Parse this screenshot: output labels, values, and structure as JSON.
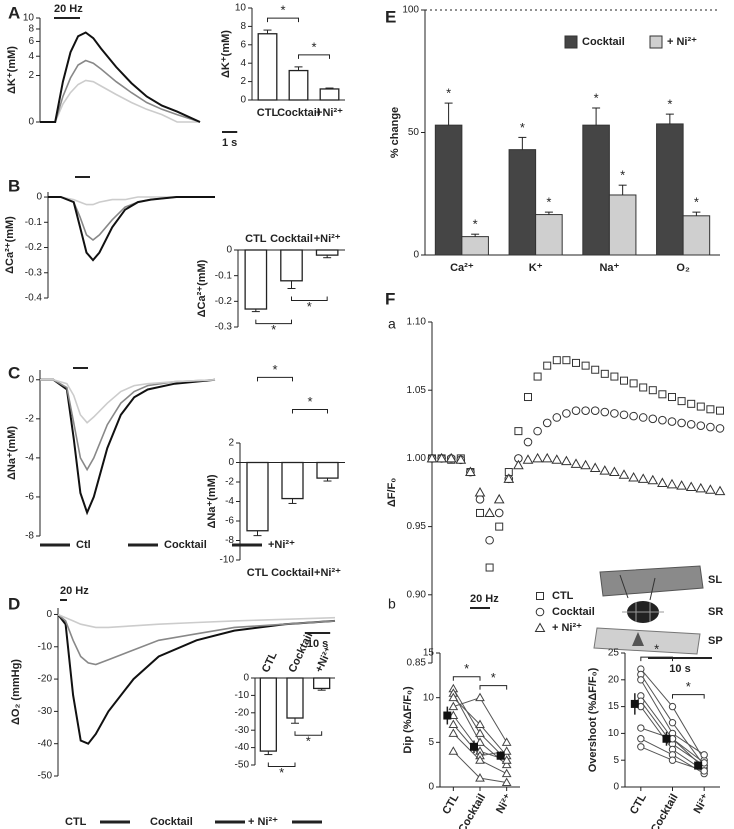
{
  "chart_data": [
    {
      "type": "line",
      "panel": "A",
      "ylabel": "ΔK⁺(mM)",
      "yscale": "sqrt",
      "ylim": [
        0,
        10
      ],
      "yticks": [
        0,
        2,
        4,
        6,
        8,
        10
      ],
      "xlim": [
        0,
        10.5
      ],
      "stim_label": "20 Hz",
      "scale_bar": {
        "value": 1,
        "label": "1 s"
      },
      "x": [
        0,
        1,
        1.5,
        2,
        2.5,
        3,
        3.5,
        4,
        5,
        6,
        7,
        8,
        9,
        10.5
      ],
      "series": [
        {
          "color": "#cccccc",
          "values": [
            0,
            0,
            0.3,
            0.8,
            1.3,
            1.6,
            1.5,
            1.2,
            0.7,
            0.35,
            0.15,
            0.05,
            0,
            0
          ]
        },
        {
          "color": "#888888",
          "values": [
            0,
            0,
            0.6,
            1.8,
            3,
            3.5,
            3.2,
            2.6,
            1.5,
            0.8,
            0.35,
            0.15,
            0.05,
            0
          ]
        },
        {
          "color": "#111111",
          "values": [
            0,
            0,
            1.5,
            4.5,
            6.8,
            7.4,
            6.5,
            5,
            2.8,
            1.4,
            0.6,
            0.25,
            0.1,
            0
          ]
        }
      ]
    },
    {
      "type": "bar",
      "ylabel": "ΔK⁺(mM)",
      "categories": [
        "CTL",
        "Cocktail",
        "+Ni²⁺"
      ],
      "values": [
        7.2,
        3.2,
        1.2
      ],
      "errors": [
        0.4,
        0.4,
        0.1
      ],
      "color": "#ffffff",
      "ylim": [
        0,
        10
      ],
      "yticks": [
        0,
        2,
        4,
        6,
        8,
        10
      ],
      "brackets": [
        {
          "between": [
            0,
            1
          ],
          "label": "*"
        },
        {
          "between": [
            1,
            2
          ],
          "label": "*"
        }
      ]
    },
    {
      "type": "line",
      "panel": "B",
      "ylabel": "ΔCa²⁺(mM)",
      "ylim": [
        -0.4,
        0.02
      ],
      "yticks": [
        0,
        -0.1,
        -0.2,
        -0.3,
        -0.4
      ],
      "xlim": [
        0,
        13
      ],
      "x": [
        0,
        1,
        2,
        2.5,
        3,
        3.5,
        4,
        5,
        6,
        7,
        8,
        10,
        13
      ],
      "series": [
        {
          "color": "#cccccc",
          "values": [
            0,
            0,
            -0.01,
            -0.02,
            -0.03,
            -0.03,
            -0.02,
            -0.01,
            -0.01,
            0,
            0,
            0,
            0
          ]
        },
        {
          "color": "#888888",
          "values": [
            0,
            0,
            -0.02,
            -0.08,
            -0.15,
            -0.17,
            -0.15,
            -0.09,
            -0.04,
            -0.02,
            -0.01,
            0,
            0
          ]
        },
        {
          "color": "#111111",
          "values": [
            0,
            0,
            -0.02,
            -0.12,
            -0.22,
            -0.25,
            -0.22,
            -0.12,
            -0.05,
            -0.02,
            -0.01,
            0,
            0
          ]
        }
      ]
    },
    {
      "type": "bar",
      "ylabel": "ΔCa²⁺(mM)",
      "categories": [
        "CTL",
        "Cocktail",
        "+Ni²⁺"
      ],
      "values": [
        -0.23,
        -0.12,
        -0.02
      ],
      "errors": [
        0.01,
        0.03,
        0.01
      ],
      "color": "#ffffff",
      "ylim": [
        -0.3,
        0
      ],
      "yticks": [
        0,
        -0.1,
        -0.2,
        -0.3
      ],
      "brackets": [
        {
          "between": [
            0,
            1
          ],
          "label": "*"
        },
        {
          "between": [
            1,
            2
          ],
          "label": "*"
        }
      ]
    },
    {
      "type": "line",
      "panel": "C",
      "ylabel": "ΔNa⁺(mM)",
      "ylim": [
        -8,
        0.5
      ],
      "yticks": [
        0,
        -2,
        -4,
        -6,
        -8
      ],
      "xlim": [
        0,
        13
      ],
      "x": [
        0,
        1,
        2,
        2.5,
        3,
        3.5,
        4,
        5,
        6,
        7,
        8,
        10,
        13
      ],
      "series": [
        {
          "name": "Ctl",
          "color": "#111111",
          "values": [
            0,
            0,
            -0.5,
            -3,
            -5.8,
            -6.8,
            -6,
            -3.5,
            -1.8,
            -0.9,
            -0.5,
            -0.2,
            0
          ]
        },
        {
          "name": "Cocktail",
          "color": "#888888",
          "values": [
            0,
            0,
            -0.4,
            -2.2,
            -4,
            -4.6,
            -4,
            -2.3,
            -1.2,
            -0.6,
            -0.3,
            -0.1,
            0
          ]
        },
        {
          "name": "+Ni²⁺",
          "color": "#cccccc",
          "values": [
            0,
            0,
            -0.2,
            -0.8,
            -1.8,
            -2.2,
            -1.9,
            -1.2,
            -0.6,
            -0.3,
            -0.2,
            -0.1,
            0
          ]
        }
      ]
    },
    {
      "type": "bar",
      "ylabel": "ΔNa⁺(mM)",
      "categories": [
        "CTL",
        "Cocktail",
        "+Ni²⁺"
      ],
      "values": [
        -7,
        -3.7,
        -1.6
      ],
      "errors": [
        0.5,
        0.5,
        0.3
      ],
      "color": "#ffffff",
      "ylim": [
        -10,
        2
      ],
      "yticks": [
        2,
        0,
        -2,
        -4,
        -6,
        -8,
        -10
      ],
      "brackets": [
        {
          "between": [
            0,
            1
          ],
          "label": "*"
        },
        {
          "between": [
            1,
            2
          ],
          "label": "*"
        }
      ]
    },
    {
      "type": "line",
      "panel": "D",
      "ylabel": "ΔO₂ (mmHg)",
      "ylim": [
        -50,
        2
      ],
      "yticks": [
        0,
        -10,
        -20,
        -30,
        -40,
        -50
      ],
      "xlim": [
        0,
        110
      ],
      "stim_label": "20 Hz",
      "scale_bar": {
        "value": 10,
        "label": "10 s"
      },
      "x": [
        0,
        3,
        6,
        9,
        12,
        15,
        20,
        30,
        40,
        55,
        70,
        90,
        110
      ],
      "series": [
        {
          "name": "CTL",
          "color": "#111111",
          "values": [
            0,
            -3,
            -25,
            -39,
            -40,
            -37,
            -30,
            -20,
            -13,
            -8,
            -5,
            -3,
            -2
          ]
        },
        {
          "name": "Cocktail",
          "color": "#888888",
          "values": [
            0,
            -2,
            -8,
            -13,
            -15,
            -15.5,
            -14,
            -11,
            -8,
            -6,
            -4,
            -3,
            -2
          ]
        },
        {
          "name": "+ Ni²⁺",
          "color": "#cccccc",
          "values": [
            0,
            -1,
            -2,
            -3,
            -3.5,
            -4,
            -4,
            -3.5,
            -3,
            -2.5,
            -2,
            -1.5,
            -1
          ]
        }
      ]
    },
    {
      "type": "bar",
      "categories": [
        "CTL",
        "Cocktail",
        "+Ni²⁺"
      ],
      "values": [
        -42,
        -23,
        -6
      ],
      "errors": [
        2,
        3,
        1
      ],
      "color": "#ffffff",
      "ylim": [
        -50,
        0
      ],
      "yticks": [
        0,
        -10,
        -20,
        -30,
        -40,
        -50
      ],
      "brackets": [
        {
          "between": [
            0,
            1
          ],
          "label": "*"
        },
        {
          "between": [
            1,
            2
          ],
          "label": "*"
        }
      ]
    },
    {
      "type": "grouped_bar",
      "panel": "E",
      "ylabel": "% change",
      "categories": [
        "Ca²⁺",
        "K⁺",
        "Na⁺",
        "O₂"
      ],
      "ylim": [
        0,
        100
      ],
      "yticks": [
        0,
        50,
        100
      ],
      "annotation": "*",
      "series": [
        {
          "name": "Cocktail",
          "color": "#454545",
          "values": [
            53,
            43,
            53,
            53.5
          ],
          "errors": [
            9,
            5,
            7,
            4
          ]
        },
        {
          "name": "+ Ni²⁺",
          "color": "#cfcfcf",
          "values": [
            7.5,
            16.5,
            24.5,
            16
          ],
          "errors": [
            1,
            1,
            4,
            1.5
          ]
        }
      ]
    },
    {
      "type": "scatter",
      "panel": "F",
      "subpanel": "a",
      "ylabel": "ΔF/F₀",
      "xlim": [
        0,
        45
      ],
      "ylim": [
        0.85,
        1.1
      ],
      "yticks": [
        {
          "value": 1.1,
          "label": "1.10"
        },
        1.05,
        {
          "value": 1,
          "label": "1.00"
        },
        0.95,
        {
          "value": 0.9,
          "label": "0.90"
        },
        0.85
      ],
      "stim_label": "20 Hz",
      "scale_bar": {
        "value": 10,
        "label": "10 s"
      },
      "diagram_labels": [
        "SL",
        "SR",
        "SP"
      ],
      "x": [
        0,
        1.5,
        3,
        4.5,
        6,
        7.5,
        9,
        10.5,
        12,
        13.5,
        15,
        16.5,
        18,
        19.5,
        21,
        22.5,
        24,
        25.5,
        27,
        28.5,
        30,
        31.5,
        33,
        34.5,
        36,
        37.5,
        39,
        40.5,
        42,
        43.5,
        45
      ],
      "series": [
        {
          "name": "CTL",
          "marker": "square",
          "values": [
            1,
            1,
            0.999,
            1,
            0.99,
            0.96,
            0.92,
            0.95,
            0.99,
            1.02,
            1.045,
            1.06,
            1.068,
            1.072,
            1.072,
            1.07,
            1.068,
            1.065,
            1.062,
            1.06,
            1.057,
            1.055,
            1.052,
            1.05,
            1.047,
            1.045,
            1.042,
            1.04,
            1.038,
            1.036,
            1.035
          ]
        },
        {
          "name": "Cocktail",
          "marker": "circle",
          "values": [
            1,
            1,
            1,
            0.999,
            0.99,
            0.97,
            0.94,
            0.96,
            0.985,
            1,
            1.012,
            1.02,
            1.026,
            1.03,
            1.033,
            1.035,
            1.035,
            1.035,
            1.034,
            1.033,
            1.032,
            1.031,
            1.03,
            1.029,
            1.028,
            1.027,
            1.026,
            1.025,
            1.024,
            1.023,
            1.022
          ]
        },
        {
          "name": "+ Ni²⁺",
          "marker": "triangle",
          "values": [
            1,
            1,
            1,
            0.999,
            0.99,
            0.975,
            0.96,
            0.97,
            0.985,
            0.995,
            0.999,
            1,
            1,
            0.999,
            0.998,
            0.996,
            0.995,
            0.993,
            0.991,
            0.99,
            0.988,
            0.986,
            0.985,
            0.984,
            0.982,
            0.981,
            0.98,
            0.979,
            0.978,
            0.977,
            0.976
          ]
        }
      ]
    },
    {
      "type": "paired",
      "subpanel": "b",
      "ylabel": "Dip (%ΔF/F₀)",
      "categories": [
        "CTL",
        "Cocktail",
        "Ni²⁺"
      ],
      "ylim": [
        0,
        15
      ],
      "yticks": [
        0,
        5,
        10,
        15
      ],
      "marker": "triangle",
      "series": [
        {
          "values": [
            11,
            6,
            3
          ]
        },
        {
          "values": [
            10.5,
            5,
            2.5
          ]
        },
        {
          "values": [
            10,
            7,
            3.5
          ]
        },
        {
          "values": [
            9,
            10,
            5
          ]
        },
        {
          "values": [
            8,
            4,
            3
          ]
        },
        {
          "values": [
            7,
            3.5,
            4
          ]
        },
        {
          "values": [
            6,
            3,
            1.5
          ]
        },
        {
          "values": [
            4,
            1,
            0.5
          ]
        }
      ],
      "mean": {
        "values": [
          8,
          4.5,
          3.5
        ],
        "errors": [
          1,
          0.7,
          0.5
        ]
      },
      "brackets": [
        {
          "between": [
            0,
            1
          ],
          "label": "*"
        },
        {
          "between": [
            1,
            2
          ],
          "label": "*"
        }
      ]
    },
    {
      "type": "paired",
      "ylabel": "Overshoot (%ΔF/F₀)",
      "categories": [
        "CTL",
        "Cocktail",
        "Ni²⁺"
      ],
      "ylim": [
        0,
        25
      ],
      "yticks": [
        0,
        5,
        10,
        15,
        20,
        25
      ],
      "marker": "circle",
      "series": [
        {
          "values": [
            22,
            15,
            5
          ]
        },
        {
          "values": [
            21,
            12,
            4
          ]
        },
        {
          "values": [
            20,
            10,
            6
          ]
        },
        {
          "values": [
            17,
            9,
            3.5
          ]
        },
        {
          "values": [
            16,
            8,
            4
          ]
        },
        {
          "values": [
            15,
            7,
            3
          ]
        },
        {
          "values": [
            11,
            9,
            4.5
          ]
        },
        {
          "values": [
            9,
            6,
            2.5
          ]
        },
        {
          "values": [
            7.5,
            5,
            3
          ]
        }
      ],
      "mean": {
        "values": [
          15.5,
          9,
          4
        ],
        "errors": [
          2,
          1.3,
          0.5
        ]
      },
      "brackets": [
        {
          "between": [
            0,
            1
          ],
          "label": "*"
        },
        {
          "between": [
            1,
            2
          ],
          "label": "*"
        }
      ]
    }
  ]
}
